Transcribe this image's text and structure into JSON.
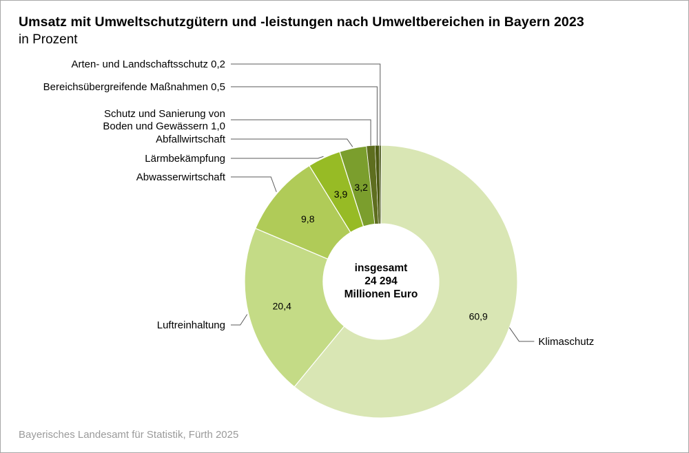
{
  "chart_data": {
    "type": "pie",
    "variant": "donut",
    "title": "Umsatz mit Umweltschutzgütern und -leistungen nach Umweltbereichen in Bayern 2023",
    "subtitle": "in Prozent",
    "unit": "%",
    "center_text": [
      "insgesamt",
      "24 294",
      "Millionen Euro"
    ],
    "total": 24294,
    "total_unit": "Millionen Euro",
    "slices": [
      {
        "name": "Klimaschutz",
        "value": 60.9,
        "value_label": "60,9",
        "label": "Klimaschutz",
        "color": "#d9e6b4"
      },
      {
        "name": "Luftreinhaltung",
        "value": 20.4,
        "value_label": "20,4",
        "label": "Luftreinhaltung",
        "color": "#c4db86"
      },
      {
        "name": "Abwasserwirtschaft",
        "value": 9.8,
        "value_label": "9,8",
        "label": "Abwasserwirtschaft",
        "color": "#b0cb58"
      },
      {
        "name": "Lärmbekämpfung",
        "value": 3.9,
        "value_label": "3,9",
        "label": "Lärmbekämpfung",
        "color": "#97bb25"
      },
      {
        "name": "Abfallwirtschaft",
        "value": 3.2,
        "value_label": "3,2",
        "label": "Abfallwirtschaft",
        "color": "#7b9e2d"
      },
      {
        "name": "Schutz und Sanierung von Boden und Gewässern",
        "value": 1.0,
        "value_label": "",
        "label": [
          "Schutz und Sanierung von",
          "Boden und Gewässern 1,0"
        ],
        "color": "#5e6e1f"
      },
      {
        "name": "Bereichsübergreifende Maßnahmen",
        "value": 0.5,
        "value_label": "",
        "label": "Bereichsübergreifende Maßnahmen 0,5",
        "color": "#4c5a12"
      },
      {
        "name": "Arten- und Landschaftsschutz",
        "value": 0.2,
        "value_label": "",
        "label": "Arten- und Landschaftsschutz 0,2",
        "color": "#3c4a0c"
      }
    ]
  },
  "footer": {
    "source": "Bayerisches Landesamt für Statistik, Fürth 2025"
  }
}
